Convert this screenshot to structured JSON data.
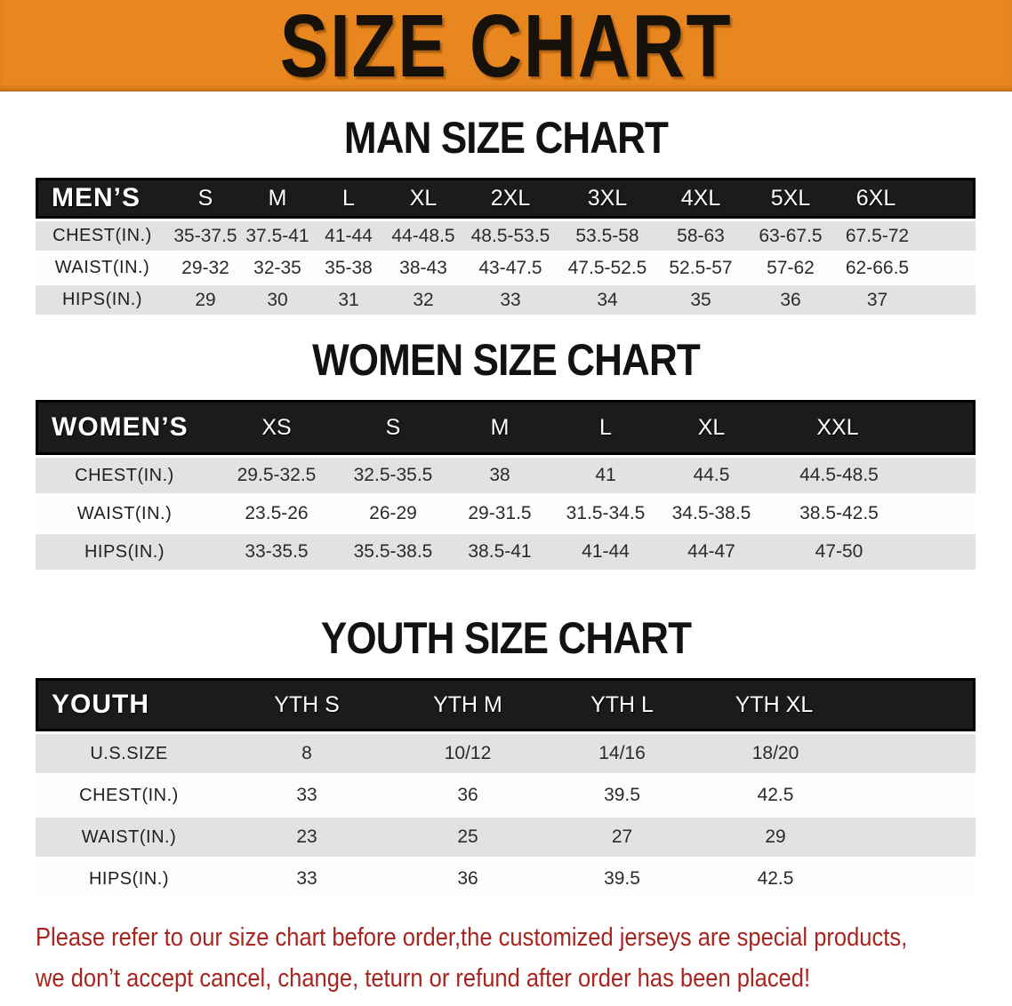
{
  "banner": {
    "title": "SIZE CHART"
  },
  "sections": [
    {
      "id": "men",
      "heading": "MAN SIZE CHART",
      "table": {
        "header_label": "MEN’S",
        "columns": [
          "S",
          "M",
          "L",
          "XL",
          "2XL",
          "3XL",
          "4XL",
          "5XL",
          "6XL"
        ],
        "rows": [
          {
            "label": "CHEST(IN.)",
            "values": [
              "35-37.5",
              "37.5-41",
              "41-44",
              "44-48.5",
              "48.5-53.5",
              "53.5-58",
              "58-63",
              "63-67.5",
              "67.5-72"
            ]
          },
          {
            "label": "WAIST(IN.)",
            "values": [
              "29-32",
              "32-35",
              "35-38",
              "38-43",
              "43-47.5",
              "47.5-52.5",
              "52.5-57",
              "57-62",
              "62-66.5"
            ]
          },
          {
            "label": "HIPS(IN.)",
            "values": [
              "29",
              "30",
              "31",
              "32",
              "33",
              "34",
              "35",
              "36",
              "37"
            ]
          }
        ]
      }
    },
    {
      "id": "women",
      "heading": "WOMEN SIZE CHART",
      "table": {
        "header_label": "WOMEN’S",
        "columns": [
          "XS",
          "S",
          "M",
          "L",
          "XL",
          "XXL"
        ],
        "rows": [
          {
            "label": "CHEST(IN.)",
            "values": [
              "29.5-32.5",
              "32.5-35.5",
              "38",
              "41",
              "44.5",
              "44.5-48.5"
            ]
          },
          {
            "label": "WAIST(IN.)",
            "values": [
              "23.5-26",
              "26-29",
              "29-31.5",
              "31.5-34.5",
              "34.5-38.5",
              "38.5-42.5"
            ]
          },
          {
            "label": "HIPS(IN.)",
            "values": [
              "33-35.5",
              "35.5-38.5",
              "38.5-41",
              "41-44",
              "44-47",
              "47-50"
            ]
          }
        ]
      }
    },
    {
      "id": "youth",
      "heading": "YOUTH SIZE CHART",
      "table": {
        "header_label": "YOUTH",
        "columns": [
          "YTH S",
          "YTH M",
          "YTH L",
          "YTH XL"
        ],
        "rows": [
          {
            "label": "U.S.SIZE",
            "values": [
              "8",
              "10/12",
              "14/16",
              "18/20"
            ]
          },
          {
            "label": "CHEST(IN.)",
            "values": [
              "33",
              "36",
              "39.5",
              "42.5"
            ]
          },
          {
            "label": "WAIST(IN.)",
            "values": [
              "23",
              "25",
              "27",
              "29"
            ]
          },
          {
            "label": "HIPS(IN.)",
            "values": [
              "33",
              "36",
              "39.5",
              "42.5"
            ]
          }
        ]
      }
    }
  ],
  "notice": {
    "line1": "Please refer to our size chart before order,the customized jerseys are special products,",
    "line2": "we don’t accept cancel, change, teturn or refund after order has been placed!"
  },
  "colors": {
    "banner_bg": "#E8861F",
    "table_header_bg": "#1B1B1B",
    "stripe_row_bg": "#E3E2E3",
    "notice_text": "#A8241E"
  }
}
